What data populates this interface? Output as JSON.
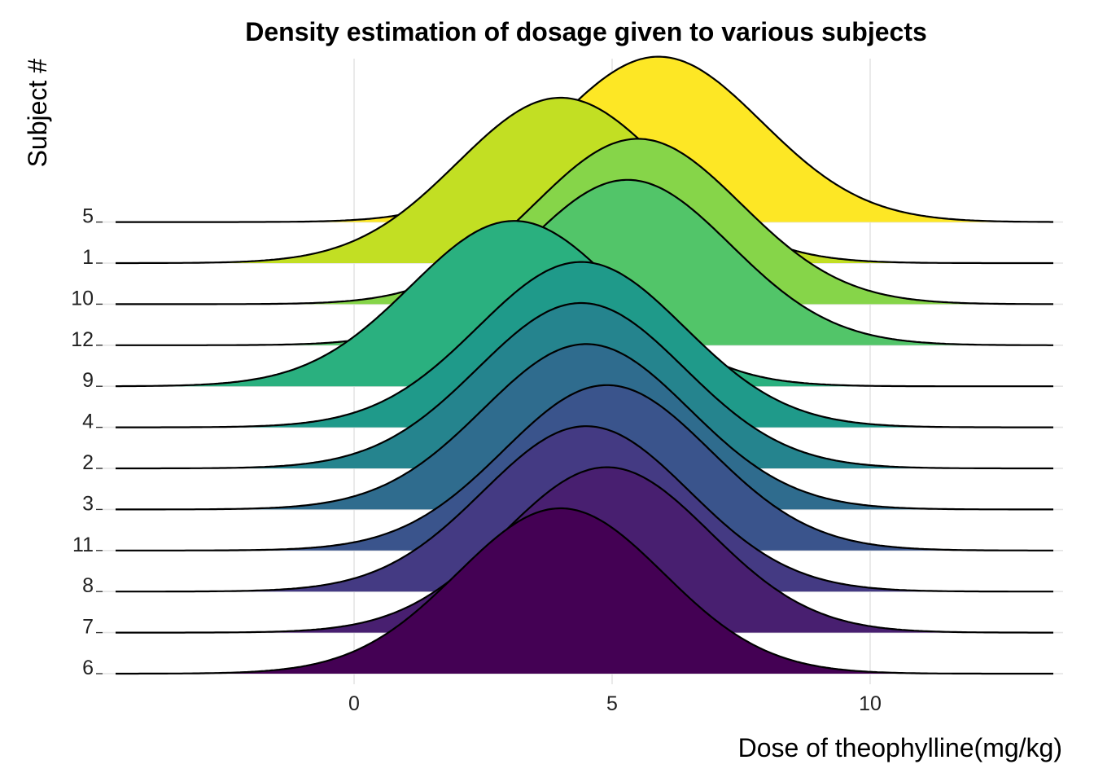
{
  "chart_data": {
    "type": "area",
    "subtype": "ridgeline",
    "title": "Density estimation of dosage given to various subjects",
    "xlabel": "Dose of theophylline(mg/kg)",
    "ylabel": "Subject #",
    "xlim": [
      -4.6,
      13.6
    ],
    "x_ticks": [
      "0",
      "5",
      "10"
    ],
    "x_tick_values": [
      0,
      5,
      10
    ],
    "grid": "vertical major gridlines",
    "legend": "none",
    "series": [
      {
        "name": "6",
        "peak_x": 4.0,
        "bandwidth": 2.0,
        "color": "#440154"
      },
      {
        "name": "7",
        "peak_x": 4.9,
        "bandwidth": 2.0,
        "color": "#481F70"
      },
      {
        "name": "8",
        "peak_x": 4.5,
        "bandwidth": 2.0,
        "color": "#443A83"
      },
      {
        "name": "11",
        "peak_x": 4.9,
        "bandwidth": 2.0,
        "color": "#3A548C"
      },
      {
        "name": "3",
        "peak_x": 4.5,
        "bandwidth": 2.0,
        "color": "#2F6C8E"
      },
      {
        "name": "2",
        "peak_x": 4.4,
        "bandwidth": 2.0,
        "color": "#25848E"
      },
      {
        "name": "4",
        "peak_x": 4.4,
        "bandwidth": 2.0,
        "color": "#1F9A8A"
      },
      {
        "name": "9",
        "peak_x": 3.1,
        "bandwidth": 2.0,
        "color": "#2AB07F"
      },
      {
        "name": "12",
        "peak_x": 5.3,
        "bandwidth": 2.0,
        "color": "#52C569"
      },
      {
        "name": "10",
        "peak_x": 5.5,
        "bandwidth": 2.0,
        "color": "#86D549"
      },
      {
        "name": "1",
        "peak_x": 4.0,
        "bandwidth": 2.0,
        "color": "#C2DF23"
      },
      {
        "name": "5",
        "peak_x": 5.9,
        "bandwidth": 2.0,
        "color": "#FDE725"
      }
    ]
  }
}
